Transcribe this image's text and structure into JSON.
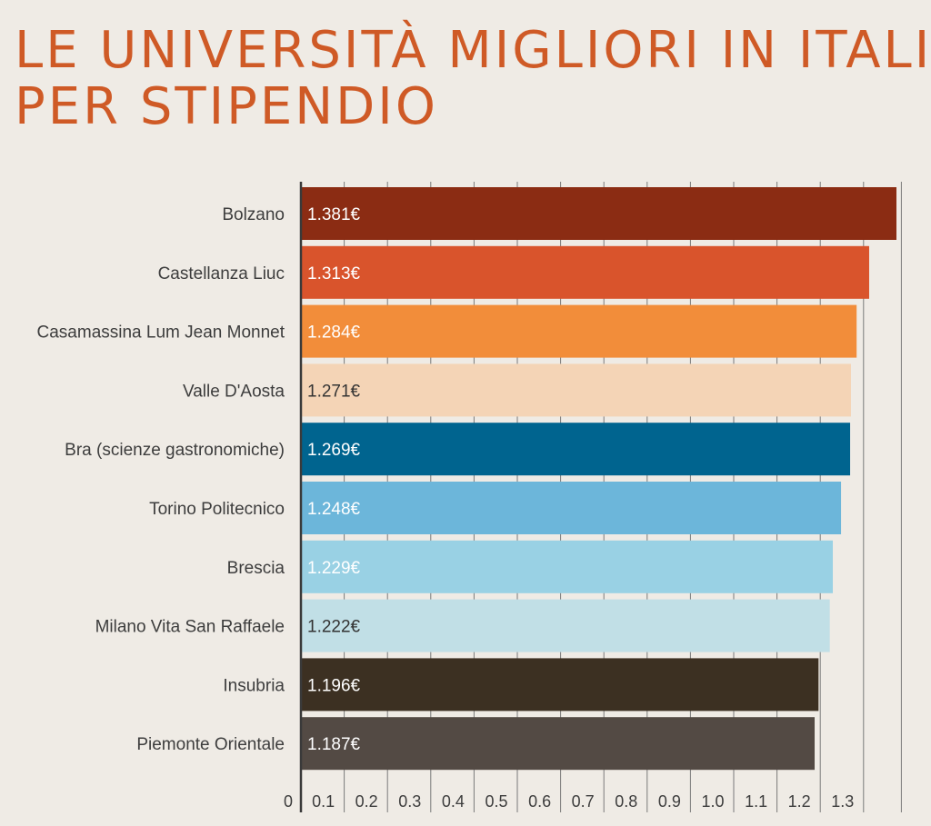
{
  "title_lines": [
    "LE UNIVERSITÀ MIGLIORI IN ITALIA",
    "PER STIPENDIO"
  ],
  "colors": {
    "background": "#efebe5",
    "title": "#cf5a26",
    "axis": "#3a3a3a",
    "grid": "#7a7a7a"
  },
  "chart_data": {
    "type": "bar",
    "orientation": "horizontal",
    "title": "LE UNIVERSITÀ MIGLIORI IN ITALIA PER STIPENDIO",
    "xlabel": "",
    "ylabel": "",
    "xlim": [
      0,
      1.4
    ],
    "grid": true,
    "categories": [
      "Bolzano",
      "Castellanza Liuc",
      "Casamassina Lum Jean Monnet",
      "Valle D'Aosta",
      "Bra (scienze gastronomiche)",
      "Torino Politecnico",
      "Brescia",
      "Milano Vita San Raffaele",
      "Insubria",
      "Piemonte Orientale"
    ],
    "values": [
      1.381,
      1.313,
      1.284,
      1.271,
      1.269,
      1.248,
      1.229,
      1.222,
      1.196,
      1.187
    ],
    "value_labels": [
      "1.381€",
      "1.313€",
      "1.284€",
      "1.271€",
      "1.269€",
      "1.248€",
      "1.229€",
      "1.222€",
      "1.196€",
      "1.187€"
    ],
    "bar_colors": [
      "#8b2c13",
      "#d9542c",
      "#f28d3a",
      "#f4d4b6",
      "#00648f",
      "#6cb6da",
      "#99d1e4",
      "#c1dfe6",
      "#3c3022",
      "#534a44"
    ],
    "label_colors": [
      "#ffffff",
      "#ffffff",
      "#ffffff",
      "#333333",
      "#ffffff",
      "#ffffff",
      "#ffffff",
      "#333333",
      "#ffffff",
      "#ffffff"
    ],
    "x_ticks": [
      0,
      0.1,
      0.2,
      0.3,
      0.4,
      0.5,
      0.6,
      0.7,
      0.8,
      0.9,
      1.0,
      1.1,
      1.2,
      1.3
    ],
    "x_tick_labels": [
      "0",
      "0.1",
      "0.2",
      "0.3",
      "0.4",
      "0.5",
      "0.6",
      "0.7",
      "0.8",
      "0.9",
      "1.0",
      "1.1",
      "1.2",
      "1.3"
    ]
  }
}
